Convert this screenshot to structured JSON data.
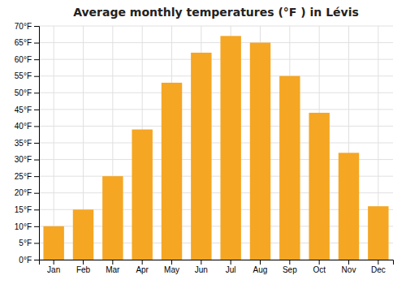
{
  "chart_data": {
    "type": "bar",
    "title": "Average monthly temperatures (°F ) in Lévis",
    "categories": [
      "Jan",
      "Feb",
      "Mar",
      "Apr",
      "May",
      "Jun",
      "Jul",
      "Aug",
      "Sep",
      "Oct",
      "Nov",
      "Dec"
    ],
    "values": [
      10,
      15,
      25,
      39,
      53,
      62,
      67,
      65,
      55,
      44,
      32,
      16
    ],
    "color": "#F5A623",
    "ylim": [
      0,
      70
    ],
    "yticks": [
      {
        "value": 0,
        "label": "0°F"
      },
      {
        "value": 5,
        "label": "5°F"
      },
      {
        "value": 10,
        "label": "10°F"
      },
      {
        "value": 15,
        "label": "15°F"
      },
      {
        "value": 20,
        "label": "20°F"
      },
      {
        "value": 25,
        "label": "25°F"
      },
      {
        "value": 30,
        "label": "30°F"
      },
      {
        "value": 35,
        "label": "35°F"
      },
      {
        "value": 40,
        "label": "40°F"
      },
      {
        "value": 45,
        "label": "45°F"
      },
      {
        "value": 50,
        "label": "50°F"
      },
      {
        "value": 55,
        "label": "55°F"
      },
      {
        "value": 60,
        "label": "60°F"
      },
      {
        "value": 65,
        "label": "65°F"
      },
      {
        "value": 70,
        "label": "70°F"
      }
    ],
    "grid": true
  }
}
